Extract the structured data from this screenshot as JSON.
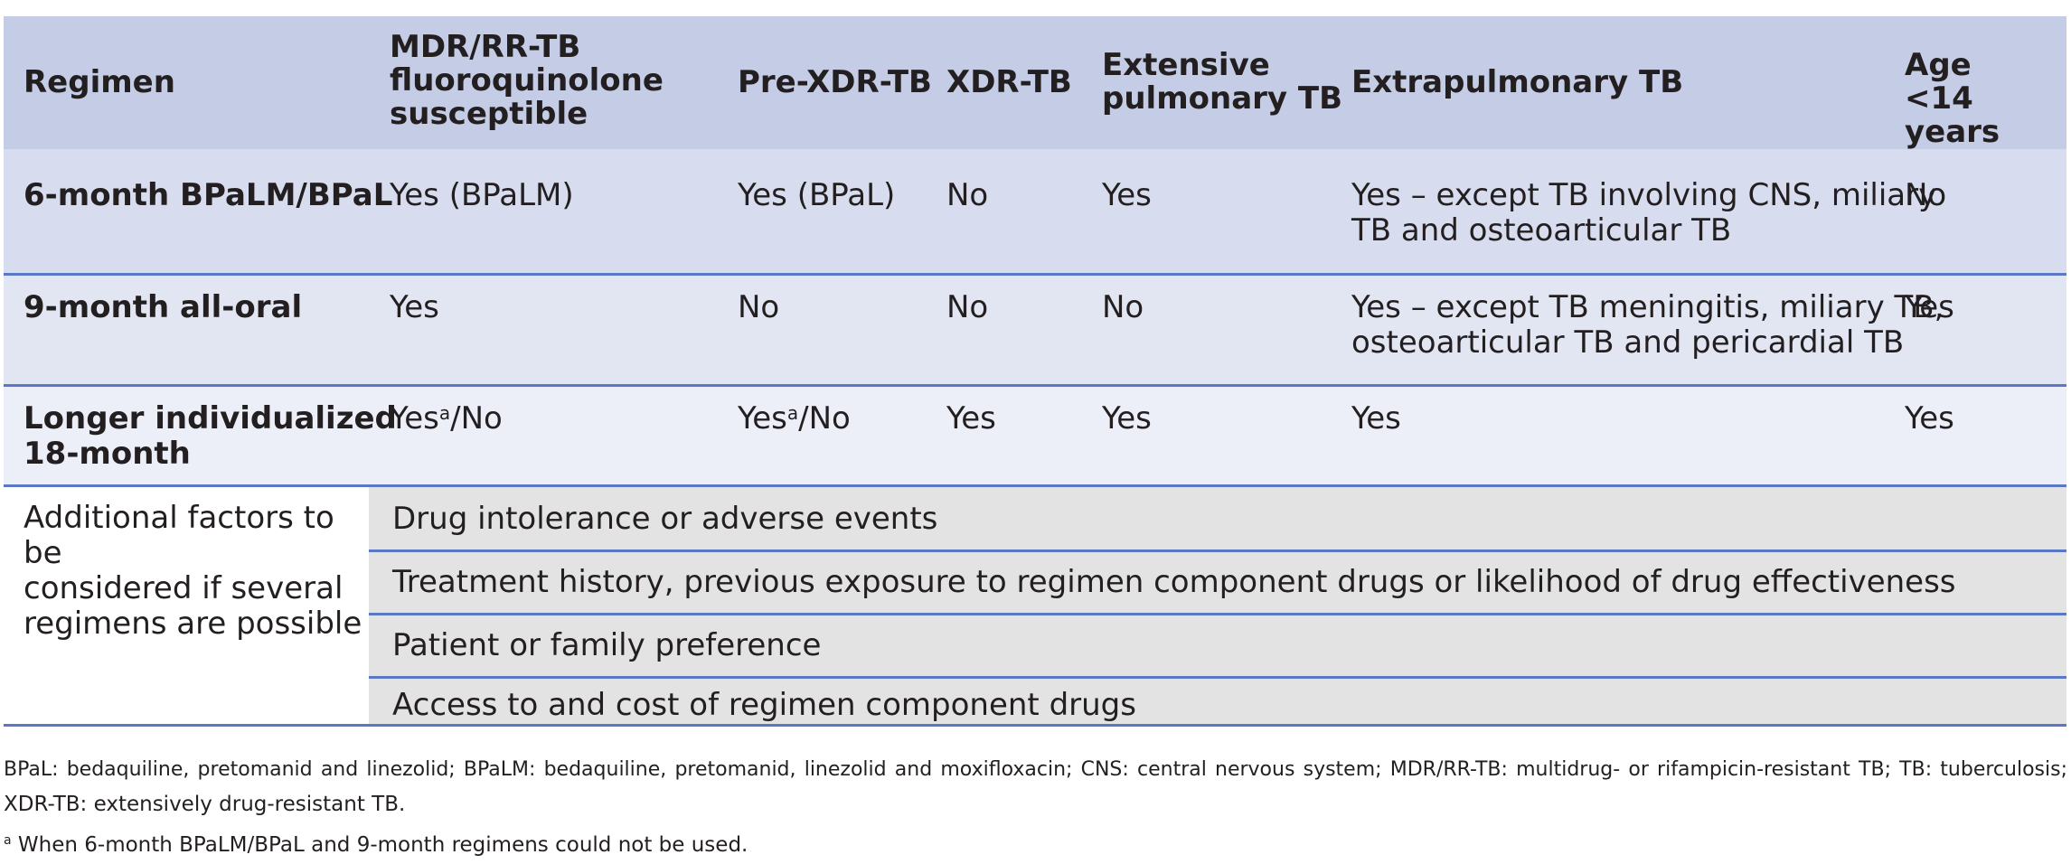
{
  "headers": {
    "regimen": "Regimen",
    "mdr": [
      "MDR/RR-TB",
      "fluoroquinolone",
      "susceptible"
    ],
    "prexdr": "Pre-XDR-TB",
    "xdr": "XDR-TB",
    "extensive": [
      "Extensive",
      "pulmonary TB"
    ],
    "extrapulmonary": "Extrapulmonary TB",
    "age": [
      "Age",
      "<14 years"
    ]
  },
  "rows": [
    {
      "regimen": [
        "6-month BPaLM/BPaL"
      ],
      "mdr": "Yes (BPaLM)",
      "prexdr": "Yes (BPaL)",
      "xdr": "No",
      "extensive": "Yes",
      "extrapulmonary": [
        "Yes – except TB involving CNS, miliary",
        "TB and osteoarticular TB"
      ],
      "age": "No"
    },
    {
      "regimen": [
        "9-month all-oral"
      ],
      "mdr": "Yes",
      "prexdr": "No",
      "xdr": "No",
      "extensive": "No",
      "extrapulmonary": [
        "Yes – except TB meningitis, miliary TB,",
        "osteoarticular TB and pericardial TB"
      ],
      "age": "Yes"
    },
    {
      "regimen": [
        "Longer individualized",
        "18-month"
      ],
      "mdr_yes": "Yes",
      "mdr_sup": "a",
      "mdr_rest": "/No",
      "prexdr_yes": "Yes",
      "prexdr_sup": "a",
      "prexdr_rest": "/No",
      "xdr": "Yes",
      "extensive": "Yes",
      "extrapulmonary": "Yes",
      "age": "Yes"
    }
  ],
  "factors": {
    "label": [
      "Additional factors to be",
      "considered if several",
      "regimens are possible"
    ],
    "items": [
      "Drug intolerance or adverse events",
      "Treatment history, previous exposure to regimen component drugs or likelihood of drug effectiveness",
      "Patient or family preference",
      "Access to and cost of regimen component drugs"
    ]
  },
  "footnotes": {
    "abbrev_1": "BPaL: bedaquiline, pretomanid and linezolid; BPaLM: bedaquiline, pretomanid, linezolid and moxifloxacin; CNS: central nervous system; MDR/RR-TB: multidrug- or rifampicin-resistant TB; TB: tuberculosis;",
    "abbrev_2": "XDR-TB: extensively drug-resistant TB.",
    "note_marker": "a",
    "note_text": " When 6-month BPaLM/BPaL and 9-month regimens could not be used."
  }
}
